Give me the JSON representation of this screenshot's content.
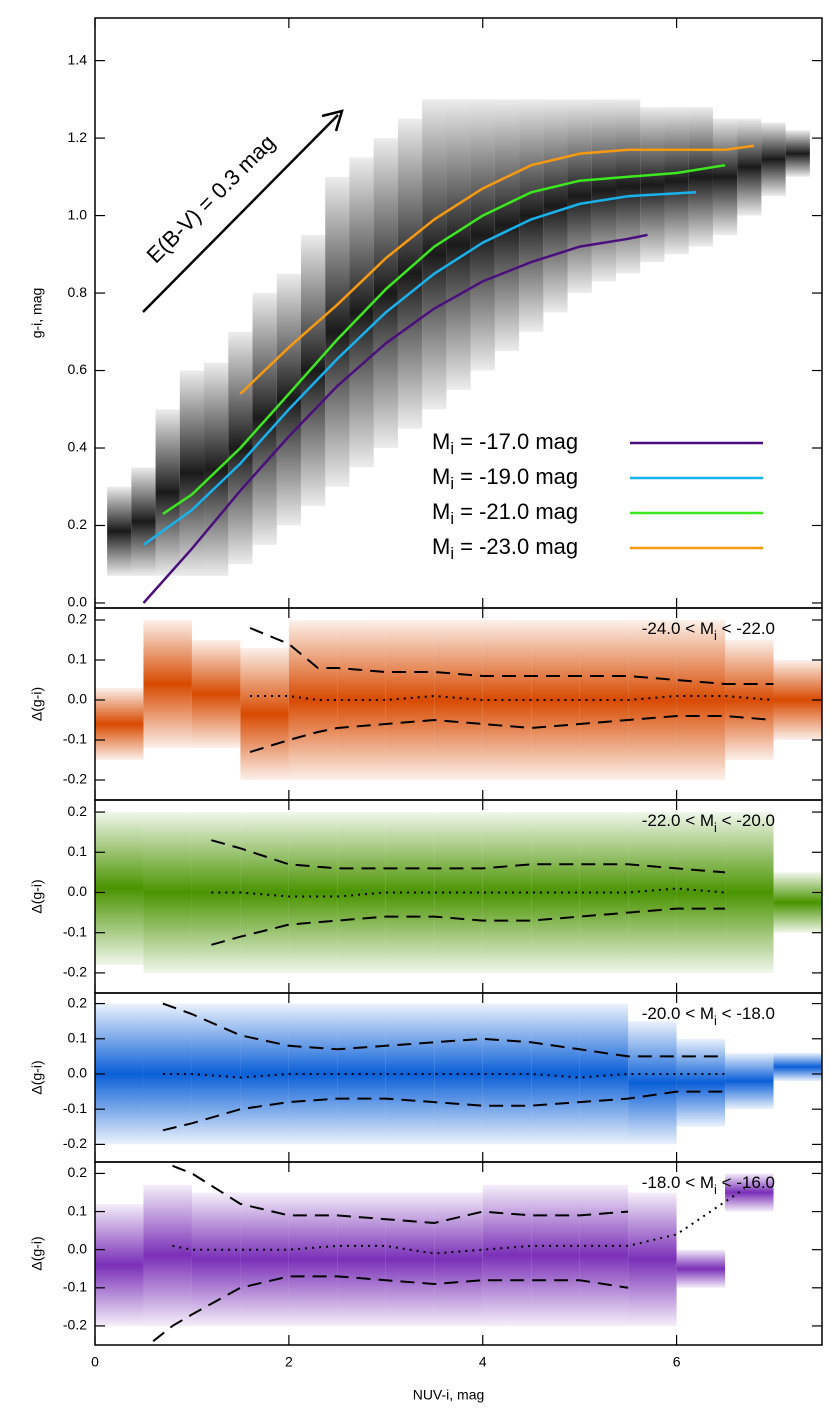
{
  "chart_data": [
    {
      "type": "line",
      "ylabel": "g-i, mag",
      "annotation": "E(B-V) = 0.3 mag",
      "ylim": [
        -0.013,
        1.51
      ],
      "yticks": [
        {
          "value": 0,
          "label": "0.0"
        },
        0.2,
        0.4,
        0.6,
        0.8,
        {
          "value": 1,
          "label": "1.0"
        },
        1.2,
        1.4
      ],
      "density": {
        "color": "#1a1a1a",
        "x": [
          0.25,
          0.5,
          0.75,
          1.0,
          1.25,
          1.5,
          1.75,
          2.0,
          2.25,
          2.5,
          2.75,
          3.0,
          3.25,
          3.5,
          3.75,
          4.0,
          4.25,
          4.5,
          4.75,
          5.0,
          5.25,
          5.5,
          5.75,
          6.0,
          6.25,
          6.5,
          6.75,
          7.0,
          7.25
        ],
        "low": [
          0.07,
          0.07,
          0.07,
          0.07,
          0.07,
          0.1,
          0.15,
          0.2,
          0.25,
          0.3,
          0.35,
          0.4,
          0.45,
          0.5,
          0.55,
          0.6,
          0.65,
          0.7,
          0.75,
          0.8,
          0.83,
          0.85,
          0.88,
          0.9,
          0.92,
          0.95,
          1.0,
          1.05,
          1.1
        ],
        "high": [
          0.3,
          0.35,
          0.5,
          0.6,
          0.62,
          0.7,
          0.8,
          0.85,
          0.95,
          1.1,
          1.15,
          1.2,
          1.25,
          1.3,
          1.3,
          1.3,
          1.3,
          1.3,
          1.3,
          1.3,
          1.3,
          1.3,
          1.28,
          1.28,
          1.28,
          1.25,
          1.25,
          1.24,
          1.22
        ]
      },
      "series": [
        {
          "name": "Mi = -17.0 mag",
          "color": "#4b0f7d",
          "x": [
            0.5,
            1,
            1.5,
            2,
            2.5,
            3,
            3.5,
            4,
            4.5,
            5,
            5.5,
            5.7
          ],
          "values": [
            0.0,
            0.14,
            0.29,
            0.43,
            0.56,
            0.67,
            0.76,
            0.83,
            0.88,
            0.92,
            0.94,
            0.95
          ]
        },
        {
          "name": "Mi = -19.0 mag",
          "color": "#19b2ee",
          "x": [
            0.5,
            1,
            1.5,
            2,
            2.5,
            3,
            3.5,
            4,
            4.5,
            5,
            5.5,
            6.2
          ],
          "values": [
            0.15,
            0.24,
            0.36,
            0.5,
            0.63,
            0.75,
            0.85,
            0.93,
            0.99,
            1.03,
            1.05,
            1.06
          ]
        },
        {
          "name": "Mi = -21.0 mag",
          "color": "#3ee820",
          "x": [
            0.7,
            1,
            1.5,
            2,
            2.5,
            3,
            3.5,
            4,
            4.5,
            5,
            5.5,
            6,
            6.5
          ],
          "values": [
            0.23,
            0.28,
            0.4,
            0.54,
            0.68,
            0.81,
            0.92,
            1.0,
            1.06,
            1.09,
            1.1,
            1.11,
            1.13
          ]
        },
        {
          "name": "Mi = -23.0 mag",
          "color": "#f79a12",
          "x": [
            1.5,
            2,
            2.5,
            3,
            3.5,
            4,
            4.5,
            5,
            5.5,
            6,
            6.5,
            6.8
          ],
          "values": [
            0.54,
            0.66,
            0.77,
            0.89,
            0.99,
            1.07,
            1.13,
            1.16,
            1.17,
            1.17,
            1.17,
            1.18
          ]
        }
      ]
    },
    {
      "type": "band",
      "label": "-24.0 < Mi < -22.0",
      "ylabel": "Δ(g-i)",
      "ylim": [
        -0.25,
        0.23
      ],
      "yticks": [
        -0.2,
        -0.1,
        {
          "value": 0,
          "label": "0.0"
        },
        0.1,
        0.2
      ],
      "density": {
        "color": "#d84a00",
        "x": [
          0.25,
          0.75,
          1.25,
          1.75,
          2.25,
          2.75,
          3.25,
          3.75,
          4.25,
          4.75,
          5.25,
          5.75,
          6.25,
          6.75,
          7.25
        ],
        "low": [
          -0.15,
          -0.12,
          -0.12,
          -0.2,
          -0.2,
          -0.2,
          -0.2,
          -0.2,
          -0.2,
          -0.2,
          -0.2,
          -0.2,
          -0.2,
          -0.15,
          -0.1
        ],
        "high": [
          0.03,
          0.2,
          0.15,
          0.13,
          0.2,
          0.2,
          0.2,
          0.2,
          0.2,
          0.2,
          0.2,
          0.2,
          0.2,
          0.15,
          0.1
        ]
      },
      "x": [
        1.6,
        2,
        2.3,
        2.5,
        3,
        3.5,
        4,
        4.5,
        5,
        5.5,
        6,
        6.5,
        7
      ],
      "upper": [
        0.18,
        0.14,
        0.08,
        0.08,
        0.07,
        0.07,
        0.06,
        0.06,
        0.06,
        0.06,
        0.05,
        0.04,
        0.04
      ],
      "median": [
        0.01,
        0.01,
        0.0,
        0.0,
        0.0,
        0.01,
        0.0,
        0.0,
        0.0,
        0.0,
        0.01,
        0.01,
        0.0
      ],
      "lower": [
        -0.13,
        -0.1,
        -0.08,
        -0.07,
        -0.06,
        -0.05,
        -0.06,
        -0.07,
        -0.06,
        -0.05,
        -0.04,
        -0.04,
        -0.05
      ]
    },
    {
      "type": "band",
      "label": "-22.0 < Mi < -20.0",
      "ylabel": "Δ(g-i)",
      "ylim": [
        -0.25,
        0.23
      ],
      "yticks": [
        -0.2,
        -0.1,
        {
          "value": 0,
          "label": "0.0"
        },
        0.1,
        0.2
      ],
      "density": {
        "color": "#4a9400",
        "x": [
          0.25,
          0.75,
          1.25,
          1.75,
          2.25,
          2.75,
          3.25,
          3.75,
          4.25,
          4.75,
          5.25,
          5.75,
          6.25,
          6.75,
          7.25
        ],
        "low": [
          -0.18,
          -0.2,
          -0.2,
          -0.2,
          -0.2,
          -0.2,
          -0.2,
          -0.2,
          -0.2,
          -0.2,
          -0.2,
          -0.2,
          -0.2,
          -0.2,
          -0.1
        ],
        "high": [
          0.2,
          0.2,
          0.2,
          0.2,
          0.2,
          0.2,
          0.2,
          0.2,
          0.2,
          0.2,
          0.2,
          0.2,
          0.2,
          0.2,
          0.05
        ]
      },
      "x": [
        1.2,
        1.5,
        2,
        2.5,
        3,
        3.5,
        4,
        4.5,
        5,
        5.5,
        6,
        6.5
      ],
      "upper": [
        0.13,
        0.11,
        0.07,
        0.06,
        0.06,
        0.06,
        0.06,
        0.07,
        0.07,
        0.07,
        0.06,
        0.05
      ],
      "median": [
        0.0,
        0.0,
        -0.01,
        -0.01,
        0.0,
        0.0,
        0.0,
        0.0,
        0.0,
        0.0,
        0.01,
        0.0
      ],
      "lower": [
        -0.13,
        -0.11,
        -0.08,
        -0.07,
        -0.06,
        -0.06,
        -0.07,
        -0.07,
        -0.06,
        -0.05,
        -0.04,
        -0.04
      ]
    },
    {
      "type": "band",
      "label": "-20.0 < Mi < -18.0",
      "ylabel": "Δ(g-i)",
      "ylim": [
        -0.25,
        0.23
      ],
      "yticks": [
        -0.2,
        -0.1,
        {
          "value": 0,
          "label": "0.0"
        },
        0.1,
        0.2
      ],
      "density": {
        "color": "#0a5fd8",
        "x": [
          0.25,
          0.75,
          1.25,
          1.75,
          2.25,
          2.75,
          3.25,
          3.75,
          4.25,
          4.75,
          5.25,
          5.75,
          6.25,
          6.75,
          7.25
        ],
        "low": [
          -0.2,
          -0.2,
          -0.2,
          -0.2,
          -0.2,
          -0.2,
          -0.2,
          -0.2,
          -0.2,
          -0.2,
          -0.2,
          -0.2,
          -0.15,
          -0.1,
          -0.02
        ],
        "high": [
          0.2,
          0.2,
          0.2,
          0.2,
          0.2,
          0.2,
          0.2,
          0.2,
          0.2,
          0.2,
          0.2,
          0.15,
          0.1,
          0.06,
          0.06
        ]
      },
      "x": [
        0.7,
        1,
        1.5,
        2,
        2.5,
        3,
        3.5,
        4,
        4.5,
        5,
        5.5,
        6,
        6.5
      ],
      "upper": [
        0.2,
        0.17,
        0.11,
        0.08,
        0.07,
        0.08,
        0.09,
        0.1,
        0.09,
        0.07,
        0.05,
        0.05,
        0.05
      ],
      "median": [
        0.0,
        0.0,
        -0.01,
        0.0,
        0.0,
        0.0,
        0.0,
        0.0,
        0.0,
        -0.01,
        0.0,
        0.0,
        0.0
      ],
      "lower": [
        -0.16,
        -0.14,
        -0.1,
        -0.08,
        -0.07,
        -0.07,
        -0.08,
        -0.09,
        -0.09,
        -0.08,
        -0.07,
        -0.05,
        -0.05
      ]
    },
    {
      "type": "band",
      "label": "-18.0 < Mi < -16.0",
      "ylabel": "Δ(g-i)",
      "ylim": [
        -0.25,
        0.23
      ],
      "yticks": [
        -0.2,
        -0.1,
        {
          "value": 0,
          "label": "0.0"
        },
        0.1,
        0.2
      ],
      "xlabel": "NUV-i, mag",
      "xlim": [
        0,
        7.5
      ],
      "xticks": [
        0,
        2,
        4,
        6
      ],
      "density": {
        "color": "#7a2fb8",
        "x": [
          0.25,
          0.75,
          1.25,
          1.75,
          2.25,
          2.75,
          3.25,
          3.75,
          4.25,
          4.75,
          5.25,
          5.75,
          6.25,
          6.75,
          7.25
        ],
        "low": [
          -0.2,
          -0.2,
          -0.2,
          -0.2,
          -0.2,
          -0.2,
          -0.2,
          -0.2,
          -0.2,
          -0.2,
          -0.2,
          -0.2,
          -0.1,
          0.1,
          null
        ],
        "high": [
          0.12,
          0.17,
          0.15,
          0.15,
          0.15,
          0.15,
          0.15,
          0.15,
          0.17,
          0.17,
          0.17,
          0.15,
          0.0,
          0.2,
          null
        ]
      },
      "x": [
        0.6,
        0.8,
        1,
        1.5,
        2,
        2.5,
        3,
        3.5,
        4,
        4.5,
        5,
        5.5,
        6,
        6.7
      ],
      "upper": [
        null,
        0.22,
        0.2,
        0.12,
        0.09,
        0.09,
        0.08,
        0.07,
        0.1,
        0.09,
        0.09,
        0.1,
        null,
        null
      ],
      "median": [
        null,
        0.01,
        0.0,
        0.0,
        0.0,
        0.01,
        0.01,
        -0.01,
        0.0,
        0.01,
        0.01,
        0.01,
        0.04,
        0.16
      ],
      "lower": [
        -0.24,
        -0.2,
        -0.17,
        -0.1,
        -0.07,
        -0.07,
        -0.08,
        -0.09,
        -0.08,
        -0.08,
        -0.08,
        -0.1,
        null,
        null
      ]
    }
  ]
}
